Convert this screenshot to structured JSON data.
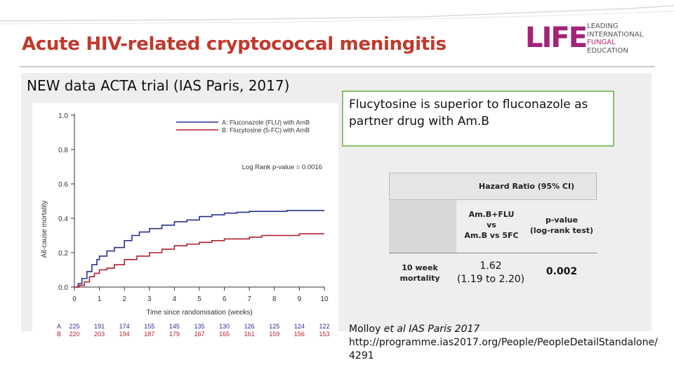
{
  "slide": {
    "title": "Acute HIV-related cryptococcal meningitis",
    "subtitle": "NEW data ACTA trial (IAS Paris, 2017)",
    "callout": {
      "line1": "Flucytosine is superior to fluconazole as",
      "line2": "partner drug with Am.B"
    },
    "citation": {
      "authors": "Molloy ",
      "etal": "et al IAS Paris 2017",
      "url_part1": "http://programme.ias2017.org/People/PeopleDetailStandalone/",
      "url_part2": "4291"
    }
  },
  "logo": {
    "mark": "LIFE",
    "lines": [
      "LEADING",
      "INTERNATIONAL",
      "FUNGAL",
      "EDUCATION"
    ],
    "colors": {
      "mark": "#a4227a",
      "accent": "#b12d7a",
      "text": "#555555"
    }
  },
  "hr_table": {
    "header": "Hazard Ratio (95% CI)",
    "col1_head": [
      "Am.B+FLU",
      "vs",
      "Am.B vs 5FC"
    ],
    "col2_head": [
      "p-value",
      "(log-rank test)"
    ],
    "row_label": [
      "10 week",
      "mortality"
    ],
    "hr_value": [
      "1.62",
      "(1.19 to 2.20)"
    ],
    "p_value": "0.002"
  },
  "chart_data": {
    "type": "line",
    "ylabel": "All-cause mortality",
    "xlabel": "Time since randomisation (weeks)",
    "xlim": [
      0,
      10
    ],
    "ylim": [
      0,
      1.0
    ],
    "x_ticks": [
      "0",
      "1",
      "2",
      "3",
      "4",
      "5",
      "6",
      "7",
      "8",
      "9",
      "10"
    ],
    "y_ticks": [
      "0.0",
      "0.2",
      "0.4",
      "0.6",
      "0.8",
      "1.0"
    ],
    "annotation": "Log Rank p-value = 0.0016",
    "legend_position": "top-right",
    "series": [
      {
        "name": "A: Fluconazole (FLU) with AmB",
        "color": "#2b2f8f",
        "x": [
          0,
          0.15,
          0.3,
          0.5,
          0.7,
          0.9,
          1.0,
          1.3,
          1.6,
          2.0,
          2.3,
          2.6,
          3.0,
          3.5,
          4.0,
          4.5,
          5.0,
          5.5,
          6.0,
          6.5,
          7.0,
          7.5,
          8.0,
          8.5,
          9.0,
          9.5,
          10.0
        ],
        "y": [
          0,
          0.02,
          0.05,
          0.09,
          0.13,
          0.16,
          0.18,
          0.21,
          0.23,
          0.27,
          0.3,
          0.32,
          0.34,
          0.36,
          0.38,
          0.39,
          0.41,
          0.42,
          0.43,
          0.435,
          0.44,
          0.44,
          0.44,
          0.445,
          0.445,
          0.445,
          0.445
        ]
      },
      {
        "name": "B: Flucytosine (5-FC) with AmB",
        "color": "#b0202a",
        "x": [
          0,
          0.2,
          0.4,
          0.6,
          0.8,
          1.0,
          1.3,
          1.6,
          2.0,
          2.5,
          3.0,
          3.5,
          4.0,
          4.5,
          5.0,
          5.5,
          6.0,
          6.5,
          7.0,
          7.5,
          8.0,
          8.5,
          9.0,
          9.5,
          10.0
        ],
        "y": [
          0,
          0.01,
          0.03,
          0.06,
          0.08,
          0.1,
          0.11,
          0.13,
          0.16,
          0.18,
          0.2,
          0.22,
          0.24,
          0.25,
          0.26,
          0.27,
          0.28,
          0.28,
          0.29,
          0.3,
          0.3,
          0.3,
          0.31,
          0.31,
          0.31
        ]
      }
    ],
    "risk_table": {
      "labels": [
        "A",
        "B"
      ],
      "colors": [
        "#2b2f8f",
        "#b0202a"
      ],
      "A": [
        "225",
        "191",
        "174",
        "155",
        "145",
        "135",
        "130",
        "126",
        "125",
        "124",
        "122"
      ],
      "B": [
        "220",
        "203",
        "194",
        "187",
        "179",
        "167",
        "165",
        "161",
        "159",
        "156",
        "153"
      ]
    }
  }
}
